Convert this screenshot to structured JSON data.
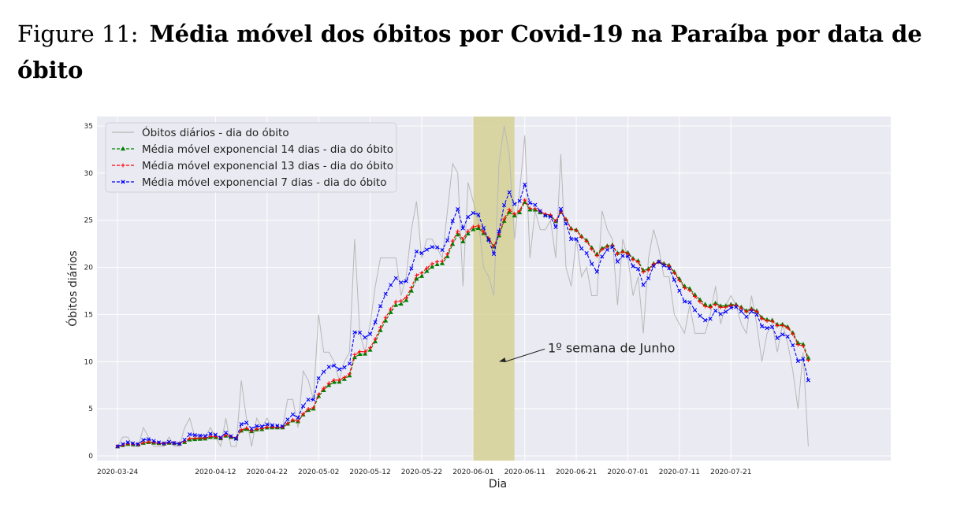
{
  "caption": {
    "label": "Figure 11:",
    "title": "Média móvel dos óbitos por Covid-19 na Paraíba por data de óbito"
  },
  "colors": {
    "daily": "#b8b8b8",
    "ema14": "#008000",
    "ema13": "#ff0000",
    "ema7": "#0000ff",
    "highlight": "#d6d39a",
    "plot_bg": "#eaeaf2",
    "grid": "#ffffff"
  },
  "chart_data": {
    "type": "line",
    "xlabel": "Dia",
    "ylabel": "Óbitos diários",
    "x_start": "2020-03-24",
    "x_ticks": [
      "2020-03-24",
      "2020-04-12",
      "2020-04-22",
      "2020-05-02",
      "2020-05-12",
      "2020-05-22",
      "2020-06-01",
      "2020-06-11",
      "2020-06-21",
      "2020-07-01",
      "2020-07-11",
      "2020-07-21"
    ],
    "y_ticks": [
      0,
      5,
      10,
      15,
      20,
      25,
      30,
      35
    ],
    "xlim": [
      "2020-03-20",
      "2020-08-21"
    ],
    "ylim": [
      -0.5,
      36
    ],
    "grid": true,
    "legend_position": "top-left",
    "highlight_span": {
      "start": "2020-06-01",
      "end": "2020-06-09"
    },
    "annotation": {
      "text": "1º semana de Junho",
      "x": "2020-06-06",
      "y": 10
    },
    "series": [
      {
        "name": "Óbitos diários - dia do óbito",
        "style": "solid",
        "values": [
          1,
          2,
          2,
          1,
          1,
          3,
          2,
          1,
          1,
          1,
          2,
          1,
          1,
          3,
          4,
          2,
          2,
          2,
          3,
          2,
          1,
          4,
          1,
          1,
          8,
          4,
          1,
          4,
          3,
          4,
          3,
          3,
          3,
          6,
          6,
          3,
          9,
          8,
          6,
          15,
          11,
          11,
          10,
          8,
          10,
          11,
          23,
          13,
          11,
          14,
          18,
          21,
          21,
          21,
          21,
          17,
          19,
          24,
          27,
          21,
          23,
          23,
          22,
          21,
          26,
          31,
          30,
          18,
          29,
          27,
          25,
          20,
          19,
          17,
          31,
          35,
          32,
          23,
          28,
          34,
          21,
          26,
          24,
          24,
          25,
          21,
          32,
          20,
          18,
          23,
          19,
          20,
          17,
          17,
          26,
          24,
          23,
          16,
          23,
          21,
          17,
          19,
          13,
          21,
          24,
          22,
          19,
          19,
          15,
          14,
          13,
          16,
          13,
          13,
          13,
          15,
          18,
          14,
          16,
          17,
          16,
          14,
          13,
          17,
          14,
          10,
          13,
          14,
          11,
          14,
          12,
          9,
          5,
          11,
          1
        ]
      },
      {
        "name": "Média móvel exponencial 14 dias - dia do óbito",
        "style": "dashed",
        "marker": "triangle",
        "values": [
          1.0,
          1.13,
          1.25,
          1.22,
          1.19,
          1.36,
          1.45,
          1.39,
          1.34,
          1.29,
          1.38,
          1.33,
          1.29,
          1.45,
          1.72,
          1.76,
          1.79,
          1.82,
          1.98,
          1.97,
          1.85,
          2.13,
          1.98,
          1.85,
          2.67,
          2.84,
          2.6,
          2.79,
          2.82,
          2.99,
          3.0,
          3.0,
          3.0,
          3.4,
          3.75,
          3.65,
          4.37,
          4.85,
          5.0,
          6.33,
          6.95,
          7.49,
          7.83,
          7.85,
          8.14,
          8.52,
          10.45,
          10.79,
          10.82,
          11.24,
          12.14,
          13.32,
          14.34,
          15.23,
          16.0,
          16.13,
          16.51,
          17.51,
          18.77,
          19.07,
          19.6,
          20.05,
          20.31,
          20.42,
          21.16,
          22.47,
          23.47,
          22.74,
          23.57,
          24.03,
          24.16,
          23.61,
          22.99,
          22.19,
          23.37,
          24.92,
          25.86,
          25.48,
          25.82,
          26.91,
          26.12,
          26.11,
          25.82,
          25.58,
          25.5,
          24.9,
          25.85,
          25.07,
          24.12,
          23.97,
          23.31,
          22.87,
          22.09,
          21.41,
          22.02,
          22.28,
          22.37,
          21.52,
          21.72,
          21.56,
          20.95,
          20.69,
          19.67,
          19.84,
          20.4,
          20.61,
          20.4,
          20.22,
          19.52,
          18.78,
          18.01,
          17.74,
          17.11,
          16.56,
          16.08,
          15.93,
          16.21,
          15.91,
          15.92,
          16.06,
          16.05,
          15.78,
          15.4,
          15.61,
          15.39,
          14.67,
          14.45,
          14.39,
          13.94,
          13.95,
          13.69,
          13.06,
          11.98,
          11.85,
          10.4
        ]
      },
      {
        "name": "Média móvel exponencial 13 dias - dia do óbito",
        "style": "dashed",
        "marker": "plus",
        "values": [
          1.0,
          1.14,
          1.27,
          1.23,
          1.2,
          1.39,
          1.48,
          1.41,
          1.35,
          1.3,
          1.4,
          1.35,
          1.3,
          1.54,
          1.85,
          1.87,
          1.89,
          1.9,
          2.06,
          2.05,
          1.9,
          2.2,
          2.03,
          1.88,
          2.76,
          2.94,
          2.66,
          2.85,
          2.9,
          3.05,
          3.05,
          3.04,
          3.04,
          3.46,
          3.82,
          3.7,
          4.46,
          4.97,
          5.11,
          6.52,
          7.16,
          7.71,
          8.04,
          8.04,
          8.32,
          8.7,
          10.74,
          11.06,
          11.05,
          11.47,
          12.4,
          13.63,
          14.68,
          15.58,
          16.36,
          16.45,
          16.81,
          17.84,
          19.15,
          19.41,
          19.92,
          20.36,
          20.6,
          20.66,
          21.42,
          22.79,
          23.82,
          23.0,
          23.85,
          24.3,
          24.4,
          23.77,
          23.09,
          22.23,
          23.49,
          25.13,
          26.11,
          25.66,
          26.0,
          27.15,
          26.27,
          26.23,
          25.91,
          25.64,
          25.55,
          24.9,
          25.92,
          25.08,
          24.07,
          23.92,
          23.22,
          22.76,
          21.94,
          21.23,
          21.91,
          22.21,
          22.32,
          21.42,
          21.64,
          21.47,
          20.83,
          20.57,
          19.5,
          19.71,
          20.33,
          20.57,
          20.34,
          20.15,
          19.41,
          18.63,
          17.82,
          17.56,
          16.91,
          16.35,
          15.87,
          15.74,
          16.06,
          15.76,
          15.79,
          15.96,
          15.96,
          15.68,
          15.3,
          15.54,
          15.32,
          14.55,
          14.33,
          14.29,
          13.82,
          13.85,
          13.59,
          12.93,
          11.8,
          11.68,
          10.15
        ]
      },
      {
        "name": "Média móvel exponencial 7 dias - dia do óbito",
        "style": "dashed",
        "marker": "x",
        "values": [
          1.0,
          1.25,
          1.44,
          1.33,
          1.25,
          1.69,
          1.77,
          1.58,
          1.43,
          1.32,
          1.49,
          1.37,
          1.28,
          1.71,
          2.28,
          2.21,
          2.16,
          2.12,
          2.34,
          2.25,
          1.94,
          2.46,
          2.09,
          1.82,
          3.37,
          3.52,
          2.89,
          3.17,
          3.13,
          3.35,
          3.26,
          3.2,
          3.15,
          3.86,
          4.4,
          4.05,
          5.29,
          5.97,
          5.98,
          8.23,
          8.92,
          9.44,
          9.58,
          9.19,
          9.39,
          9.79,
          13.1,
          13.08,
          12.56,
          12.92,
          14.19,
          15.89,
          17.17,
          18.13,
          18.85,
          18.39,
          18.54,
          19.9,
          21.68,
          21.51,
          21.88,
          22.16,
          22.12,
          21.84,
          22.88,
          24.91,
          26.18,
          24.14,
          25.35,
          25.77,
          25.58,
          24.18,
          22.89,
          21.42,
          23.81,
          26.61,
          27.96,
          26.72,
          27.04,
          28.78,
          26.84,
          26.63,
          25.97,
          25.48,
          25.36,
          24.27,
          26.2,
          24.65,
          23.0,
          23.0,
          22.0,
          21.5,
          20.37,
          19.53,
          21.15,
          21.86,
          22.15,
          20.61,
          21.21,
          21.16,
          20.12,
          19.84,
          18.13,
          18.85,
          20.14,
          20.6,
          20.2,
          19.9,
          18.68,
          17.51,
          16.38,
          16.29,
          15.47,
          14.85,
          14.39,
          14.54,
          15.4,
          15.05,
          15.29,
          15.72,
          15.79,
          15.34,
          14.76,
          15.32,
          14.99,
          13.74,
          13.56,
          13.67,
          12.5,
          12.88,
          12.66,
          11.74,
          10.06,
          10.29,
          8.02
        ]
      }
    ]
  }
}
